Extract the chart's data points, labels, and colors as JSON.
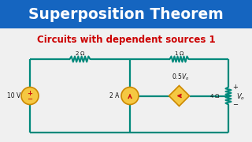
{
  "title": "Superposition Theorem",
  "subtitle": "Circuits with dependent sources 1",
  "title_bg": "#1565C0",
  "title_color": "#FFFFFF",
  "subtitle_color": "#CC0000",
  "bg_color": "#F0F0F0",
  "wire_color": "#00897B",
  "component_fill": "#F5C842",
  "component_edge": "#CC8800",
  "resistor_color": "#00897B",
  "arrow_color": "#CC1111",
  "text_color": "#111111",
  "label_color": "#111111",
  "L": 38,
  "R": 290,
  "T": 75,
  "B": 168,
  "MX": 165,
  "vs_r": 11,
  "cs_r": 11,
  "ds_size": 13
}
